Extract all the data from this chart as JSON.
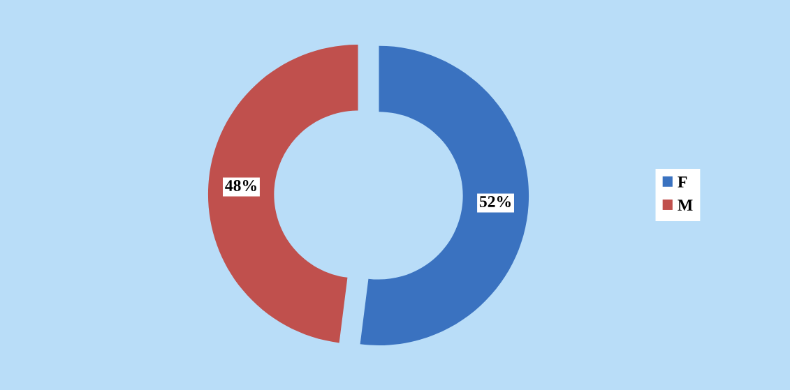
{
  "chart_data": {
    "type": "donut",
    "categories": [
      "F",
      "M"
    ],
    "values": [
      52,
      48
    ],
    "colors": [
      "#3a72c0",
      "#c0504d"
    ],
    "value_labels": [
      "52%",
      "48%"
    ],
    "legend": "right"
  }
}
